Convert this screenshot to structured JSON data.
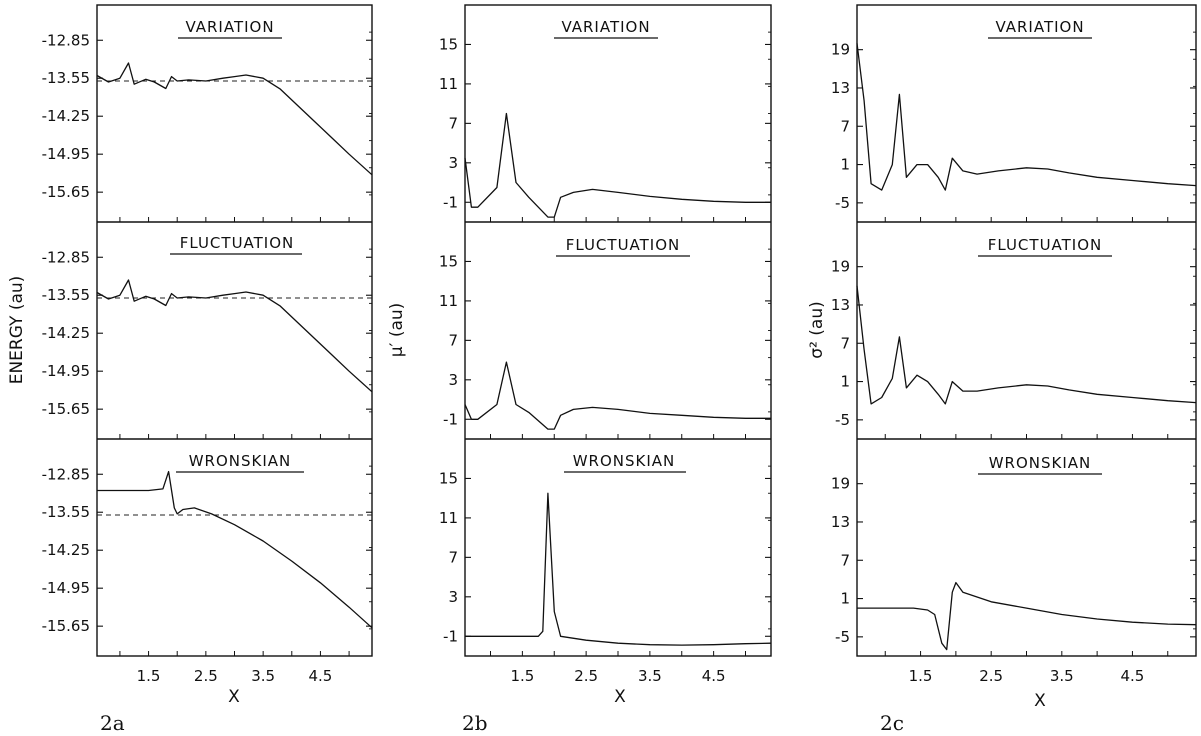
{
  "chart_data": [
    {
      "type": "line",
      "label": "2a",
      "ylabel": "ENERGY (au)",
      "xlabel": "X",
      "xlim": [
        0.6,
        5.4
      ],
      "xticks": [
        "1.5",
        "2.5",
        "3.5",
        "4.5"
      ],
      "ylim": [
        -16.2,
        -12.2
      ],
      "yticks": [
        "-12.85",
        "-13.55",
        "-14.25",
        "-14.95",
        "-15.65"
      ],
      "reference_line": -13.6,
      "panels": [
        {
          "title": "VARIATION",
          "series": [
            {
              "x": [
                0.6,
                0.8,
                1.0,
                1.15,
                1.25,
                1.45,
                1.6,
                1.8,
                1.9,
                2.0,
                2.2,
                2.5,
                2.8,
                3.0,
                3.2,
                3.5,
                3.8,
                4.1,
                4.4,
                4.7,
                5.0,
                5.4
              ],
              "y": [
                -13.5,
                -13.62,
                -13.55,
                -13.27,
                -13.66,
                -13.57,
                -13.62,
                -13.74,
                -13.52,
                -13.6,
                -13.58,
                -13.6,
                -13.55,
                -13.52,
                -13.49,
                -13.55,
                -13.75,
                -14.05,
                -14.35,
                -14.65,
                -14.95,
                -15.33
              ]
            }
          ]
        },
        {
          "title": "FLUCTUATION",
          "series": [
            {
              "x": [
                0.6,
                0.8,
                1.0,
                1.15,
                1.25,
                1.45,
                1.6,
                1.8,
                1.9,
                2.0,
                2.2,
                2.5,
                2.8,
                3.0,
                3.2,
                3.5,
                3.8,
                4.1,
                4.4,
                4.7,
                5.0,
                5.4
              ],
              "y": [
                -13.5,
                -13.62,
                -13.55,
                -13.27,
                -13.66,
                -13.57,
                -13.62,
                -13.74,
                -13.52,
                -13.6,
                -13.58,
                -13.6,
                -13.55,
                -13.52,
                -13.49,
                -13.55,
                -13.75,
                -14.05,
                -14.35,
                -14.65,
                -14.95,
                -15.33
              ]
            }
          ]
        },
        {
          "title": "WRONSKIAN",
          "series": [
            {
              "x": [
                0.6,
                1.0,
                1.5,
                1.75,
                1.85,
                1.95,
                2.0,
                2.1,
                2.3,
                2.6,
                3.0,
                3.5,
                4.0,
                4.5,
                5.0,
                5.4
              ],
              "y": [
                -13.15,
                -13.15,
                -13.15,
                -13.12,
                -12.8,
                -13.47,
                -13.58,
                -13.5,
                -13.47,
                -13.58,
                -13.78,
                -14.08,
                -14.45,
                -14.85,
                -15.3,
                -15.68
              ]
            }
          ]
        }
      ]
    },
    {
      "type": "line",
      "label": "2b",
      "ylabel": "μ′ (au)",
      "xlabel": "X",
      "xlim": [
        0.6,
        5.4
      ],
      "xticks": [
        "1.5",
        "2.5",
        "3.5",
        "4.5"
      ],
      "ylim": [
        -3,
        19
      ],
      "yticks": [
        "15",
        "11",
        "7",
        "3",
        "-1"
      ],
      "panels": [
        {
          "title": "VARIATION",
          "series": [
            {
              "x": [
                0.6,
                0.7,
                0.8,
                1.1,
                1.25,
                1.4,
                1.6,
                1.9,
                2.0,
                2.1,
                2.3,
                2.6,
                3.0,
                3.5,
                4.0,
                4.5,
                5.0,
                5.4
              ],
              "y": [
                3.5,
                -1.5,
                -1.5,
                0.5,
                8,
                1,
                -0.5,
                -2.5,
                -2.5,
                -0.5,
                0,
                0.3,
                0,
                -0.4,
                -0.7,
                -0.9,
                -1,
                -1
              ]
            }
          ]
        },
        {
          "title": "FLUCTUATION",
          "series": [
            {
              "x": [
                0.6,
                0.7,
                0.8,
                1.1,
                1.25,
                1.4,
                1.6,
                1.9,
                2.0,
                2.1,
                2.3,
                2.6,
                3.0,
                3.5,
                4.0,
                4.5,
                5.0,
                5.4
              ],
              "y": [
                0.5,
                -1,
                -1,
                0.5,
                4.8,
                0.5,
                -0.3,
                -2,
                -2,
                -0.6,
                0,
                0.2,
                0,
                -0.4,
                -0.6,
                -0.8,
                -0.9,
                -0.9
              ]
            }
          ]
        },
        {
          "title": "WRONSKIAN",
          "series": [
            {
              "x": [
                0.6,
                1.0,
                1.5,
                1.75,
                1.82,
                1.9,
                2.0,
                2.1,
                2.5,
                3.0,
                3.5,
                4.0,
                4.5,
                5.0,
                5.4
              ],
              "y": [
                -1,
                -1,
                -1,
                -1,
                -0.5,
                13.5,
                1.5,
                -1,
                -1.4,
                -1.7,
                -1.85,
                -1.9,
                -1.85,
                -1.75,
                -1.7
              ]
            }
          ]
        }
      ]
    },
    {
      "type": "line",
      "label": "2c",
      "ylabel": "σ² (au)",
      "xlabel": "X",
      "xlim": [
        0.6,
        5.4
      ],
      "xticks": [
        "1.5",
        "2.5",
        "3.5",
        "4.5"
      ],
      "ylim": [
        -8,
        26
      ],
      "yticks": [
        "19",
        "13",
        "7",
        "1",
        "-5"
      ],
      "panels": [
        {
          "title": "VARIATION",
          "series": [
            {
              "x": [
                0.6,
                0.7,
                0.8,
                0.95,
                1.1,
                1.2,
                1.3,
                1.45,
                1.6,
                1.75,
                1.85,
                1.95,
                2.1,
                2.3,
                2.6,
                3.0,
                3.3,
                3.6,
                4.0,
                4.5,
                5.0,
                5.4
              ],
              "y": [
                20,
                11,
                -2,
                -3,
                1,
                12,
                -1,
                1,
                1,
                -1,
                -3,
                2,
                0,
                -0.5,
                0,
                0.5,
                0.3,
                -0.3,
                -1,
                -1.5,
                -2,
                -2.3
              ]
            }
          ]
        },
        {
          "title": "FLUCTUATION",
          "series": [
            {
              "x": [
                0.6,
                0.7,
                0.8,
                0.95,
                1.1,
                1.2,
                1.3,
                1.45,
                1.6,
                1.75,
                1.85,
                1.95,
                2.1,
                2.3,
                2.6,
                3.0,
                3.3,
                3.6,
                4.0,
                4.5,
                5.0,
                5.4
              ],
              "y": [
                16,
                6,
                -2.5,
                -1.5,
                1.5,
                8,
                0,
                2,
                1,
                -1,
                -2.5,
                1,
                -0.5,
                -0.5,
                0,
                0.5,
                0.3,
                -0.3,
                -1,
                -1.5,
                -2,
                -2.3
              ]
            }
          ]
        },
        {
          "title": "WRONSKIAN",
          "series": [
            {
              "x": [
                0.6,
                1.0,
                1.4,
                1.6,
                1.7,
                1.8,
                1.87,
                1.95,
                2.0,
                2.1,
                2.5,
                3.0,
                3.5,
                4.0,
                4.5,
                5.0,
                5.4
              ],
              "y": [
                -0.5,
                -0.5,
                -0.5,
                -0.8,
                -1.5,
                -6,
                -7,
                2,
                3.5,
                2,
                0.5,
                -0.5,
                -1.5,
                -2.2,
                -2.7,
                -3,
                -3.1
              ]
            }
          ]
        }
      ]
    }
  ]
}
